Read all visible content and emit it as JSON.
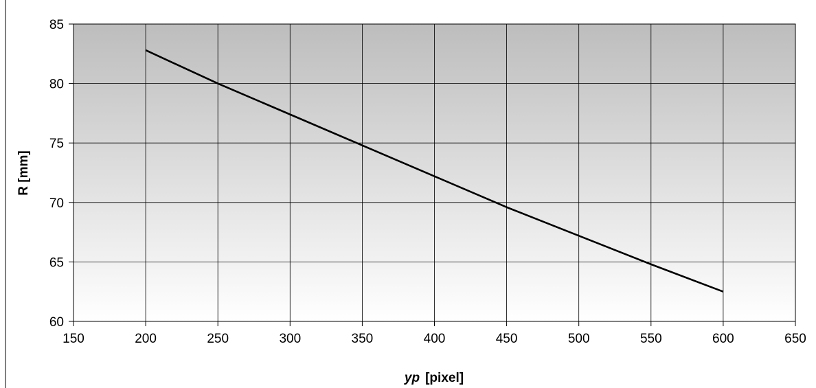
{
  "chart_data": {
    "type": "line",
    "xlabel_var": "yp",
    "xlabel_unit": "[pixel]",
    "ylabel": "R [mm]",
    "xlim": [
      150,
      650
    ],
    "ylim": [
      60,
      85
    ],
    "xticks": [
      150,
      200,
      250,
      300,
      350,
      400,
      450,
      500,
      550,
      600,
      650
    ],
    "yticks": [
      60,
      65,
      70,
      75,
      80,
      85
    ],
    "grid": true,
    "plot_background": "gradient-gray-to-white",
    "colors": {
      "line": "#000000",
      "grid": "#000000",
      "plot_top": "#bdbdbd",
      "plot_bottom": "#ffffff"
    },
    "series": [
      {
        "x": [
          200,
          250,
          300,
          350,
          400,
          450,
          500,
          550,
          600
        ],
        "y": [
          82.8,
          80.0,
          77.4,
          74.8,
          72.2,
          69.6,
          67.2,
          64.8,
          62.5
        ]
      }
    ]
  }
}
